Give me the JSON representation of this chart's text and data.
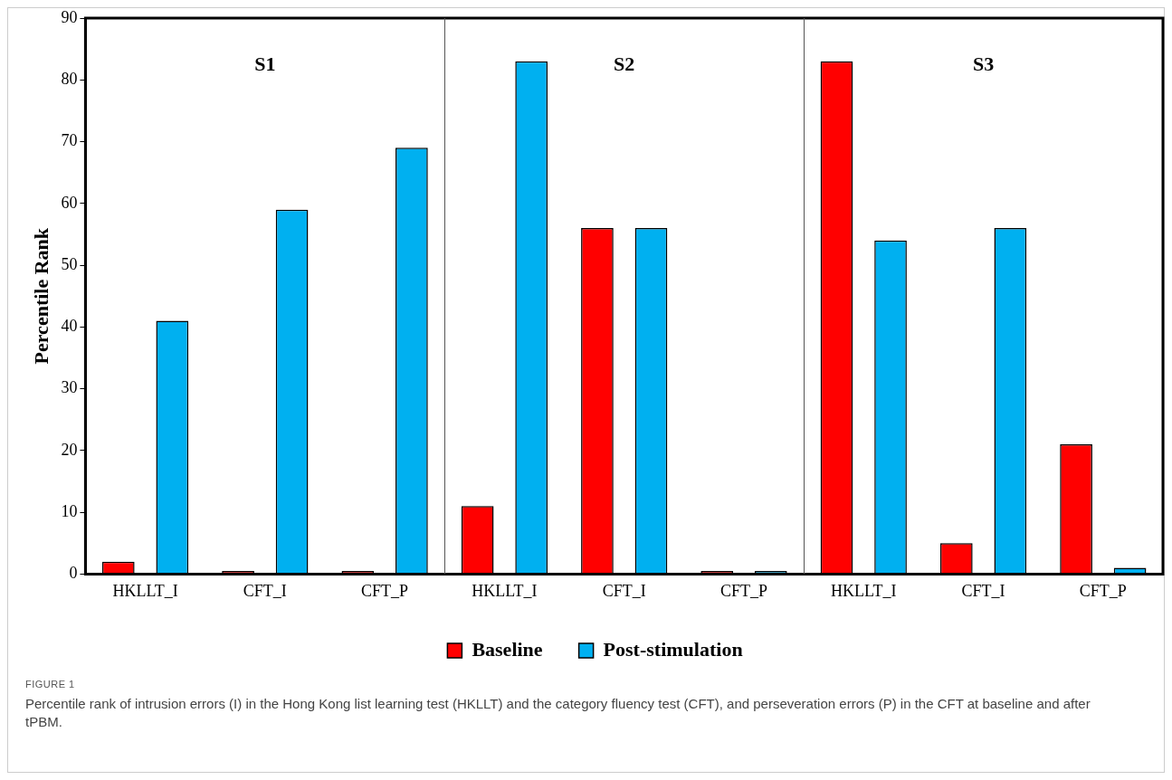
{
  "chart_data": {
    "type": "bar",
    "ylabel": "Percentile Rank",
    "categories": [
      "HKLLT_I",
      "CFT_I",
      "CFT_P",
      "HKLLT_I",
      "CFT_I",
      "CFT_P",
      "HKLLT_I",
      "CFT_I",
      "CFT_P"
    ],
    "series": [
      {
        "name": "Baseline",
        "color": "#ff0000",
        "values": [
          2,
          0.5,
          0.5,
          11,
          56,
          0.5,
          83,
          5,
          21
        ]
      },
      {
        "name": "Post-stimulation",
        "color": "#00b0f0",
        "values": [
          41,
          59,
          69,
          83,
          56,
          0.5,
          54,
          56,
          1
        ]
      }
    ],
    "ylim": [
      0,
      90
    ],
    "yticks": [
      0,
      10,
      20,
      30,
      40,
      50,
      60,
      70,
      80,
      90
    ],
    "grid": false,
    "legend": "bottom",
    "annotations": [
      "S1",
      "S2",
      "S3",
      "FIGURE 1",
      "Percentile rank of intrusion errors (I) in the Hong Kong list learning test (HKLLT) and the category fluency test (CFT), and perseveration errors (P) in the CFT at baseline and after tPBM."
    ]
  }
}
